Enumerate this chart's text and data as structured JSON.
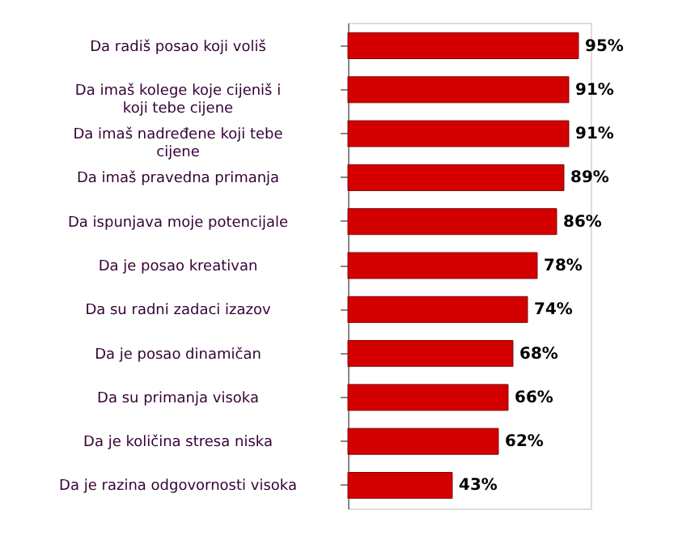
{
  "chart_data": {
    "type": "bar",
    "orientation": "horizontal",
    "categories": [
      "Da radiš posao koji voliš",
      "Da imaš kolege koje cijeniš i koji tebe cijene",
      "Da imaš nadređene koji tebe cijene",
      "Da imaš pravedna primanja",
      "Da ispunjava moje potencijale",
      "Da je posao kreativan",
      "Da su radni zadaci izazov",
      "Da je posao dinamičan",
      "Da su primanja visoka",
      "Da je količina stresa niska",
      "Da je razina odgovornosti visoka"
    ],
    "values": [
      95,
      91,
      91,
      89,
      86,
      78,
      74,
      68,
      66,
      62,
      43
    ],
    "value_labels": [
      "95%",
      "91%",
      "91%",
      "89%",
      "86%",
      "78%",
      "74%",
      "68%",
      "66%",
      "62%",
      "43%"
    ],
    "color": "#d40000",
    "xlim": [
      0,
      100
    ],
    "grid": false
  }
}
